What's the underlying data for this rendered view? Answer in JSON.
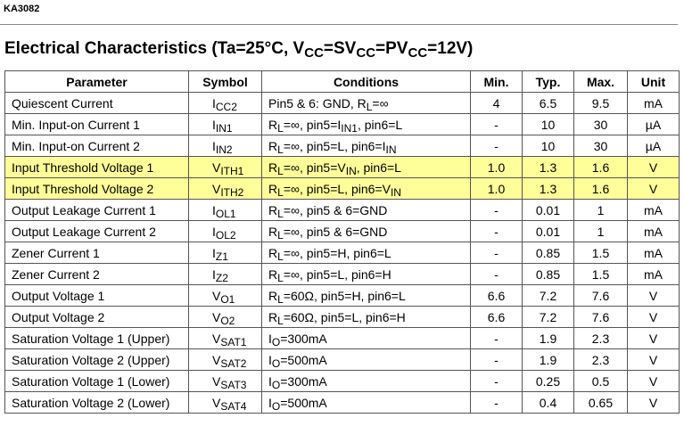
{
  "header": {
    "doc_id": "KA3082"
  },
  "title": [
    "Electrical Characteristics (Ta=25°C, V",
    {
      "sub": "CC"
    },
    "=SV",
    {
      "sub": "CC"
    },
    "=PV",
    {
      "sub": "CC"
    },
    "=12V)"
  ],
  "table": {
    "columns": [
      "Parameter",
      "Symbol",
      "Conditions",
      "Min.",
      "Typ.",
      "Max.",
      "Unit"
    ],
    "rows": [
      {
        "cells": [
          "Quiescent Current",
          [
            "I",
            {
              "sub": "CC2"
            }
          ],
          [
            "Pin5 & 6: GND, R",
            {
              "sub": "L"
            },
            "=∞"
          ],
          "4",
          "6.5",
          "9.5",
          "mA"
        ]
      },
      {
        "cells": [
          "Min. Input-on Current 1",
          [
            "I",
            {
              "sub": "IN1"
            }
          ],
          [
            "R",
            {
              "sub": "L"
            },
            "=∞, pin5=I",
            {
              "sub": "IN1"
            },
            ", pin6=L"
          ],
          "-",
          "10",
          "30",
          "µA"
        ]
      },
      {
        "cells": [
          "Min. Input-on Current 2",
          [
            "I",
            {
              "sub": "IN2"
            }
          ],
          [
            "R",
            {
              "sub": "L"
            },
            "=∞, pin5=L, pin6=I",
            {
              "sub": "IN"
            }
          ],
          "-",
          "10",
          "30",
          "µA"
        ]
      },
      {
        "cells": [
          "Input Threshold Voltage 1",
          [
            "V",
            {
              "sub": "ITH1"
            }
          ],
          [
            "R",
            {
              "sub": "L"
            },
            "=∞, pin5=V",
            {
              "sub": "IN"
            },
            ", pin6=L"
          ],
          "1.0",
          "1.3",
          "1.6",
          "V"
        ],
        "highlight": true
      },
      {
        "cells": [
          "Input Threshold Voltage 2",
          [
            "V",
            {
              "sub": "ITH2"
            }
          ],
          [
            "R",
            {
              "sub": "L"
            },
            "=∞, pin5=L, pin6=V",
            {
              "sub": "IN"
            }
          ],
          "1.0",
          "1.3",
          "1.6",
          "V"
        ],
        "highlight": true
      },
      {
        "cells": [
          "Output Leakage Current 1",
          [
            "I",
            {
              "sub": "OL1"
            }
          ],
          [
            "R",
            {
              "sub": "L"
            },
            "=∞, pin5 & 6=GND"
          ],
          "-",
          "0.01",
          "1",
          "mA"
        ]
      },
      {
        "cells": [
          "Output Leakage Current 2",
          [
            "I",
            {
              "sub": "OL2"
            }
          ],
          [
            "R",
            {
              "sub": "L"
            },
            "=∞, pin5 & 6=GND"
          ],
          "-",
          "0.01",
          "1",
          "mA"
        ]
      },
      {
        "cells": [
          "Zener Current 1",
          [
            "I",
            {
              "sub": "Z1"
            }
          ],
          [
            "R",
            {
              "sub": "L"
            },
            "=∞, pin5=H, pin6=L"
          ],
          "-",
          "0.85",
          "1.5",
          "mA"
        ]
      },
      {
        "cells": [
          "Zener Current 2",
          [
            "I",
            {
              "sub": "Z2"
            }
          ],
          [
            "R",
            {
              "sub": "L"
            },
            "=∞, pin5=L, pin6=H"
          ],
          "-",
          "0.85",
          "1.5",
          "mA"
        ]
      },
      {
        "cells": [
          "Output Voltage 1",
          [
            "V",
            {
              "sub": "O1"
            }
          ],
          [
            "R",
            {
              "sub": "L"
            },
            "=60Ω, pin5=H, pin6=L"
          ],
          "6.6",
          "7.2",
          "7.6",
          "V"
        ]
      },
      {
        "cells": [
          "Output Voltage 2",
          [
            "V",
            {
              "sub": "O2"
            }
          ],
          [
            "R",
            {
              "sub": "L"
            },
            "=60Ω, pin5=L, pin6=H"
          ],
          "6.6",
          "7.2",
          "7.6",
          "V"
        ]
      },
      {
        "cells": [
          "Saturation Voltage 1 (Upper)",
          [
            "V",
            {
              "sub": "SAT1"
            }
          ],
          [
            "I",
            {
              "sub": "O"
            },
            "=300mA"
          ],
          "-",
          "1.9",
          "2.3",
          "V"
        ]
      },
      {
        "cells": [
          "Saturation Voltage 2 (Upper)",
          [
            "V",
            {
              "sub": "SAT2"
            }
          ],
          [
            "I",
            {
              "sub": "O"
            },
            "=500mA"
          ],
          "-",
          "1.9",
          "2.3",
          "V"
        ]
      },
      {
        "cells": [
          "Saturation Voltage 1 (Lower)",
          [
            "V",
            {
              "sub": "SAT3"
            }
          ],
          [
            "I",
            {
              "sub": "O"
            },
            "=300mA"
          ],
          "-",
          "0.25",
          "0.5",
          "V"
        ]
      },
      {
        "cells": [
          "Saturation Voltage 2 (Lower)",
          [
            "V",
            {
              "sub": "SAT4"
            }
          ],
          [
            "I",
            {
              "sub": "O"
            },
            "=500mA"
          ],
          "-",
          "0.4",
          "0.65",
          "V"
        ]
      }
    ]
  }
}
